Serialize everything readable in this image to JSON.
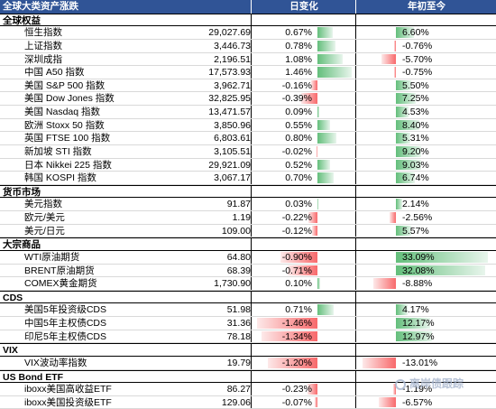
{
  "header": {
    "title": "全球大类资产涨跌",
    "col_daily": "日变化",
    "col_ytd": "年初至今"
  },
  "sections": [
    {
      "name": "全球权益",
      "rows": [
        {
          "name": "恒生指数",
          "value": "29,027.69",
          "daily": 0.67,
          "daily_label": "0.67%",
          "ytd": 6.6,
          "ytd_label": "6.60%"
        },
        {
          "name": "上证指数",
          "value": "3,446.73",
          "daily": 0.78,
          "daily_label": "0.78%",
          "ytd": -0.76,
          "ytd_label": "-0.76%"
        },
        {
          "name": "深圳成指",
          "value": "2,196.51",
          "daily": 1.08,
          "daily_label": "1.08%",
          "ytd": -5.7,
          "ytd_label": "-5.70%"
        },
        {
          "name": "中国 A50 指数",
          "value": "17,573.93",
          "daily": 1.46,
          "daily_label": "1.46%",
          "ytd": -0.75,
          "ytd_label": "-0.75%"
        },
        {
          "name": "美国 S&P 500 指数",
          "value": "3,962.71",
          "daily": -0.16,
          "daily_label": "-0.16%",
          "ytd": 5.5,
          "ytd_label": "5.50%"
        },
        {
          "name": "美国 Dow Jones 指数",
          "value": "32,825.95",
          "daily": -0.39,
          "daily_label": "-0.39%",
          "ytd": 7.25,
          "ytd_label": "7.25%"
        },
        {
          "name": "美国 Nasdaq 指数",
          "value": "13,471.57",
          "daily": 0.09,
          "daily_label": "0.09%",
          "ytd": 4.53,
          "ytd_label": "4.53%"
        },
        {
          "name": "欧洲 Stoxx 50 指数",
          "value": "3,850.96",
          "daily": 0.55,
          "daily_label": "0.55%",
          "ytd": 8.4,
          "ytd_label": "8.40%"
        },
        {
          "name": "英国 FTSE 100 指数",
          "value": "6,803.61",
          "daily": 0.8,
          "daily_label": "0.80%",
          "ytd": 5.31,
          "ytd_label": "5.31%"
        },
        {
          "name": "新加坡 STI 指数",
          "value": "3,105.51",
          "daily": -0.02,
          "daily_label": "-0.02%",
          "ytd": 9.2,
          "ytd_label": "9.20%"
        },
        {
          "name": "日本 Nikkei 225 指数",
          "value": "29,921.09",
          "daily": 0.52,
          "daily_label": "0.52%",
          "ytd": 9.03,
          "ytd_label": "9.03%"
        },
        {
          "name": "韩国 KOSPI 指数",
          "value": "3,067.17",
          "daily": 0.7,
          "daily_label": "0.70%",
          "ytd": 6.74,
          "ytd_label": "6.74%"
        }
      ]
    },
    {
      "name": "货币市场",
      "rows": [
        {
          "name": "美元指数",
          "value": "91.87",
          "daily": 0.03,
          "daily_label": "0.03%",
          "ytd": 2.14,
          "ytd_label": "2.14%"
        },
        {
          "name": "欧元/美元",
          "value": "1.19",
          "daily": -0.22,
          "daily_label": "-0.22%",
          "ytd": -2.56,
          "ytd_label": "-2.56%"
        },
        {
          "name": "美元/日元",
          "value": "109.00",
          "daily": -0.12,
          "daily_label": "-0.12%",
          "ytd": 5.57,
          "ytd_label": "5.57%"
        }
      ]
    },
    {
      "name": "大宗商品",
      "rows": [
        {
          "name": "WTI原油期货",
          "value": "64.80",
          "daily": -0.9,
          "daily_label": "-0.90%",
          "ytd": 33.09,
          "ytd_label": "33.09%"
        },
        {
          "name": "BRENT原油期货",
          "value": "68.39",
          "daily": -0.71,
          "daily_label": "-0.71%",
          "ytd": 32.08,
          "ytd_label": "32.08%"
        },
        {
          "name": "COMEX黄金期货",
          "value": "1,730.90",
          "daily": 0.1,
          "daily_label": "0.10%",
          "ytd": -8.88,
          "ytd_label": "-8.88%"
        }
      ]
    },
    {
      "name": "CDS",
      "rows": [
        {
          "name": "美国5年投资级CDS",
          "value": "51.98",
          "daily": 0.71,
          "daily_label": "0.71%",
          "ytd": 4.17,
          "ytd_label": "4.17%"
        },
        {
          "name": "中国5年主权债CDS",
          "value": "31.36",
          "daily": -1.46,
          "daily_label": "-1.46%",
          "ytd": 12.17,
          "ytd_label": "12.17%"
        },
        {
          "name": "印尼5年主权债CDS",
          "value": "78.18",
          "daily": -1.34,
          "daily_label": "-1.34%",
          "ytd": 12.97,
          "ytd_label": "12.97%"
        }
      ]
    },
    {
      "name": "VIX",
      "rows": [
        {
          "name": "VIX波动率指数",
          "value": "19.79",
          "daily": -1.2,
          "daily_label": "-1.20%",
          "ytd": -13.01,
          "ytd_label": "-13.01%"
        }
      ]
    },
    {
      "name": "US Bond ETF",
      "rows": [
        {
          "name": "iboxx美国高收益ETF",
          "value": "86.27",
          "daily": -0.23,
          "daily_label": "-0.23%",
          "ytd": -1.19,
          "ytd_label": "-1.19%"
        },
        {
          "name": "iboxx美国投资级ETF",
          "value": "129.06",
          "daily": -0.07,
          "daily_label": "-0.07%",
          "ytd": -6.57,
          "ytd_label": "-6.57%"
        }
      ]
    }
  ],
  "watermark": "离岸债跟踪",
  "colors": {
    "header_bg": "#305496",
    "positive_bar": "#63be7b",
    "negative_bar": "#f8696b"
  }
}
